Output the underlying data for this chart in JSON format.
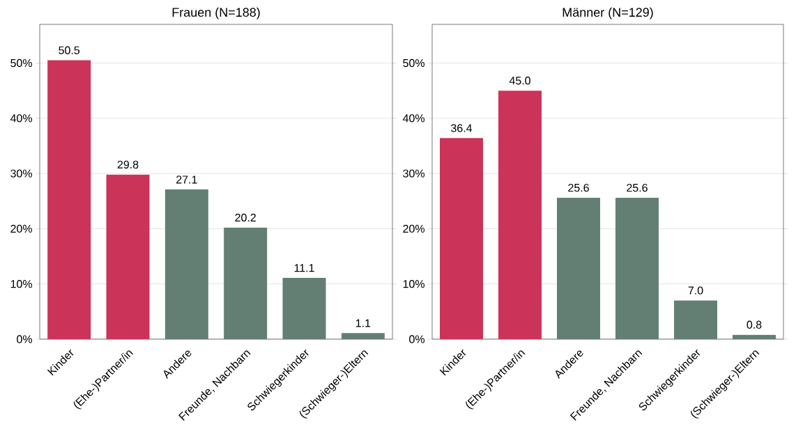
{
  "chart_data": [
    {
      "type": "bar",
      "title": "Frauen (N=188)",
      "categories": [
        "Kinder",
        "(Ehe-)Partner/in",
        "Andere",
        "Freunde, Nachbarn",
        "Schwiegerkinder",
        "(Schwieger-)Eltern"
      ],
      "values": [
        50.5,
        29.8,
        27.1,
        20.2,
        11.1,
        1.1
      ],
      "colors": [
        "#cc3358",
        "#cc3358",
        "#637f74",
        "#637f74",
        "#637f74",
        "#637f74"
      ],
      "ylim": [
        0,
        57
      ],
      "yticks": [
        {
          "value": 0,
          "label": "0%"
        },
        {
          "value": 10,
          "label": "10%"
        },
        {
          "value": 20,
          "label": "20%"
        },
        {
          "value": 30,
          "label": "30%"
        },
        {
          "value": 40,
          "label": "40%"
        },
        {
          "value": 50,
          "label": "50%"
        }
      ],
      "grid": "y",
      "data_labels": true
    },
    {
      "type": "bar",
      "title": "Männer (N=129)",
      "categories": [
        "Kinder",
        "(Ehe-)Partner/in",
        "Andere",
        "Freunde, Nachbarn",
        "Schwiegerkinder",
        "(Schwieger-)Eltern"
      ],
      "values": [
        36.4,
        45.0,
        25.6,
        25.6,
        7.0,
        0.8
      ],
      "value_labels": [
        "36.4",
        "45.0",
        "25.6",
        "25.6",
        "7.0",
        "0.8"
      ],
      "colors": [
        "#cc3358",
        "#cc3358",
        "#637f74",
        "#637f74",
        "#637f74",
        "#637f74"
      ],
      "ylim": [
        0,
        57
      ],
      "yticks": [
        {
          "value": 0,
          "label": "0%"
        },
        {
          "value": 10,
          "label": "10%"
        },
        {
          "value": 20,
          "label": "20%"
        },
        {
          "value": 30,
          "label": "30%"
        },
        {
          "value": 40,
          "label": "40%"
        },
        {
          "value": 50,
          "label": "50%"
        }
      ],
      "grid": "y"
    }
  ]
}
